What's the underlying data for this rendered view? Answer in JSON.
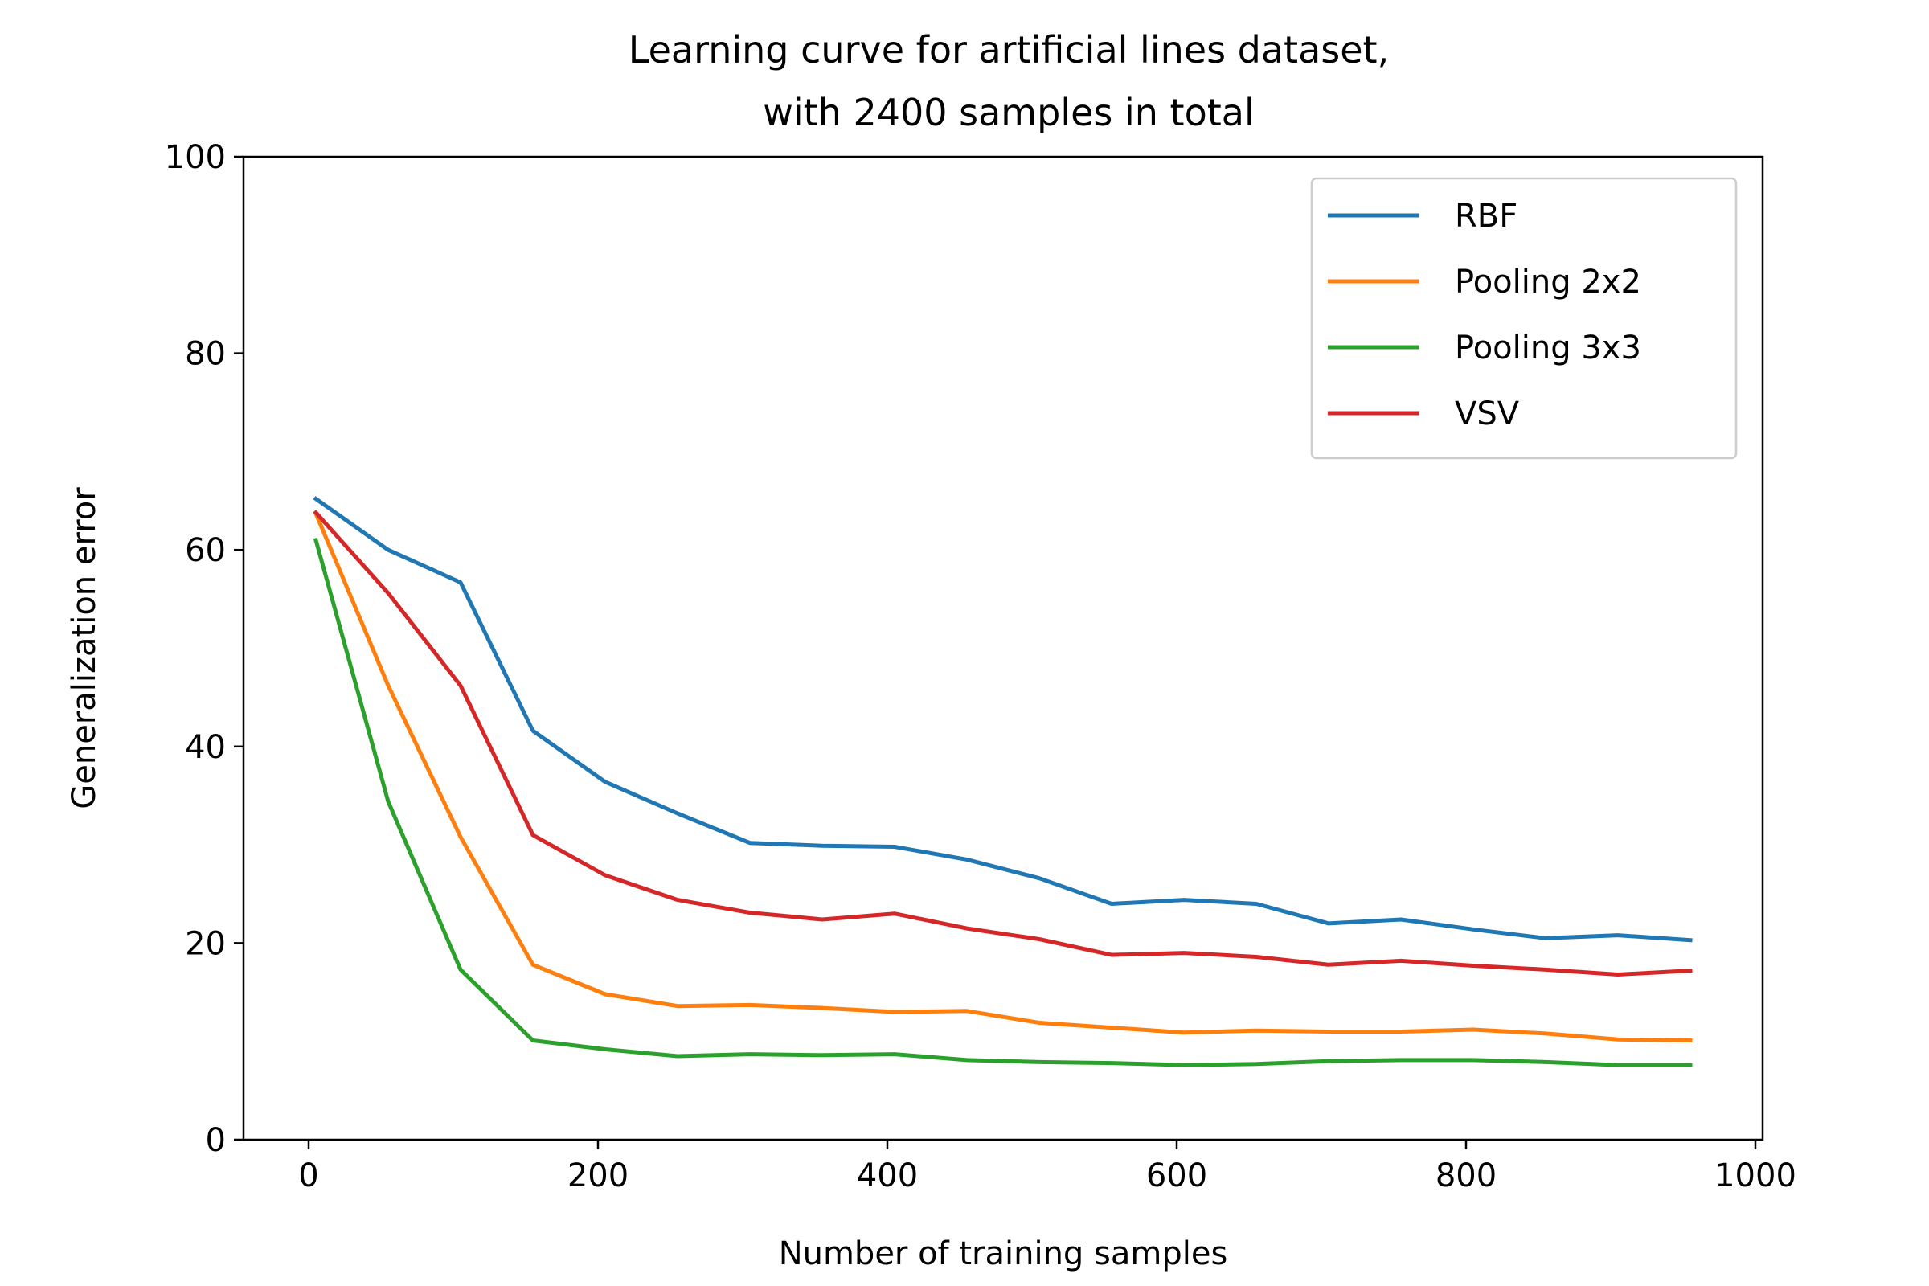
{
  "chart_data": {
    "type": "line",
    "title": "Learning curve for artificial lines dataset,\nwith 2400 samples in total",
    "xlabel": "Number of training samples",
    "ylabel": "Generalization error",
    "xlim": [
      -45,
      1005
    ],
    "ylim": [
      0,
      100
    ],
    "xticks": [
      0,
      200,
      400,
      600,
      800,
      1000
    ],
    "yticks": [
      0,
      20,
      40,
      60,
      80,
      100
    ],
    "grid": false,
    "legend_position": "top-right",
    "x": [
      5,
      55,
      105,
      155,
      205,
      255,
      305,
      355,
      405,
      455,
      505,
      555,
      605,
      655,
      705,
      755,
      805,
      855,
      905,
      955
    ],
    "series": [
      {
        "name": "RBF",
        "color": "#1f77b4",
        "values": [
          65.2,
          60.0,
          56.7,
          41.6,
          36.4,
          33.2,
          30.2,
          29.9,
          29.8,
          28.5,
          26.6,
          24.0,
          24.4,
          24.0,
          22.0,
          22.4,
          21.4,
          20.5,
          20.8,
          20.3
        ]
      },
      {
        "name": "Pooling 2x2",
        "color": "#ff7f0e",
        "values": [
          63.7,
          46.2,
          30.8,
          17.8,
          14.8,
          13.6,
          13.7,
          13.4,
          13.0,
          13.1,
          11.9,
          11.4,
          10.9,
          11.1,
          11.0,
          11.0,
          11.2,
          10.8,
          10.2,
          10.1
        ]
      },
      {
        "name": "Pooling 3x3",
        "color": "#2ca02c",
        "values": [
          61.0,
          34.4,
          17.3,
          10.1,
          9.2,
          8.5,
          8.7,
          8.6,
          8.7,
          8.1,
          7.9,
          7.8,
          7.6,
          7.7,
          8.0,
          8.1,
          8.1,
          7.9,
          7.6,
          7.6
        ]
      },
      {
        "name": "VSV",
        "color": "#d62728",
        "values": [
          63.8,
          55.6,
          46.2,
          31.0,
          26.9,
          24.4,
          23.1,
          22.4,
          23.0,
          21.5,
          20.4,
          18.8,
          19.0,
          18.6,
          17.8,
          18.2,
          17.7,
          17.3,
          16.8,
          17.2
        ]
      }
    ]
  }
}
